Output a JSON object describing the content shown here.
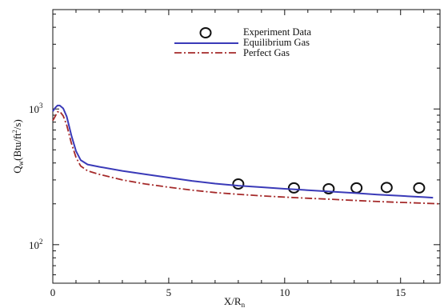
{
  "chart_data": {
    "type": "line",
    "xlabel": "X/R",
    "xlabel_sub": "n",
    "ylabel": "Q",
    "ylabel_sub": "w",
    "ylabel_units": "(Btu/ft",
    "ylabel_sup": "2",
    "ylabel_units_end": "/s)",
    "xlim": [
      0,
      16.7
    ],
    "ylim": [
      52,
      5400
    ],
    "yscale": "log",
    "x_ticks": [
      0,
      5,
      10,
      15
    ],
    "y_ticks": [
      {
        "value": 100,
        "base": "10",
        "exp": "2"
      },
      {
        "value": 1000,
        "base": "10",
        "exp": "3"
      }
    ],
    "grid": false,
    "legend_position": "top-center",
    "series": [
      {
        "name": "Experiment Data",
        "kind": "markers",
        "color": "#111111",
        "x": [
          8.0,
          10.4,
          11.9,
          13.1,
          14.4,
          15.8
        ],
        "y": [
          280,
          262,
          258,
          262,
          264,
          262
        ]
      },
      {
        "name": "Equilibrium Gas",
        "kind": "line",
        "color": "#3a3ab8",
        "x": [
          0,
          0.1,
          0.2,
          0.3,
          0.45,
          0.6,
          0.8,
          1.0,
          1.2,
          1.5,
          2,
          3,
          4,
          5,
          6,
          7,
          8,
          9,
          10,
          11,
          12,
          13,
          14,
          15,
          16,
          16.4
        ],
        "y": [
          960,
          1020,
          1060,
          1060,
          1010,
          880,
          640,
          490,
          420,
          390,
          375,
          350,
          330,
          312,
          295,
          282,
          272,
          265,
          258,
          252,
          246,
          240,
          234,
          229,
          224,
          222
        ]
      },
      {
        "name": "Perfect Gas",
        "kind": "line",
        "color": "#a52a2a",
        "x": [
          0,
          0.1,
          0.2,
          0.3,
          0.45,
          0.6,
          0.8,
          1.0,
          1.2,
          1.5,
          2,
          3,
          4,
          5,
          6,
          7,
          8,
          9,
          10,
          11,
          12,
          13,
          14,
          15,
          16,
          16.7
        ],
        "y": [
          820,
          880,
          950,
          960,
          890,
          760,
          560,
          440,
          380,
          350,
          330,
          300,
          280,
          265,
          252,
          242,
          235,
          229,
          224,
          220,
          216,
          212,
          208,
          205,
          202,
          200
        ]
      }
    ]
  }
}
